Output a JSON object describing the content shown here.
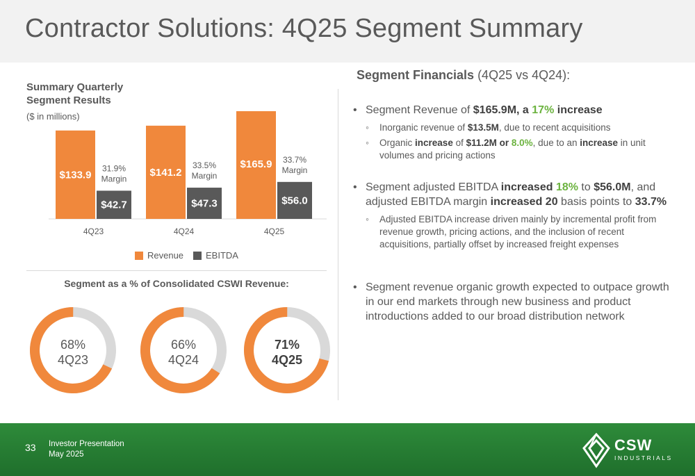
{
  "page": {
    "title": "Contractor Solutions: 4Q25 Segment Summary"
  },
  "chart_data": [
    {
      "type": "bar",
      "title": "Summary Quarterly Segment Results",
      "title_lines": [
        "Summary Quarterly",
        "Segment Results"
      ],
      "subtitle": "($ in millions)",
      "categories": [
        "4Q23",
        "4Q24",
        "4Q25"
      ],
      "series": [
        {
          "name": "Revenue",
          "values": [
            133.9,
            141.2,
            165.9
          ],
          "labels": [
            "$133.9",
            "$141.2",
            "$165.9"
          ],
          "color": "#f0883c"
        },
        {
          "name": "EBITDA",
          "values": [
            42.7,
            47.3,
            56.0
          ],
          "labels": [
            "$42.7",
            "$47.3",
            "$56.0"
          ],
          "color": "#595959"
        }
      ],
      "annotations": [
        {
          "lines": [
            "31.9%",
            "Margin"
          ]
        },
        {
          "lines": [
            "33.5%",
            "Margin"
          ]
        },
        {
          "lines": [
            "33.7%",
            "Margin"
          ]
        }
      ],
      "legend_position": "bottom",
      "grid": false
    },
    {
      "type": "pie",
      "title": "Segment as a % of Consolidated CSWI Revenue:",
      "items": [
        {
          "value": 68,
          "label": "68%",
          "period": "4Q23",
          "bold": false
        },
        {
          "value": 66,
          "label": "66%",
          "period": "4Q24",
          "bold": false
        },
        {
          "value": 71,
          "label": "71%",
          "period": "4Q25",
          "bold": true
        }
      ],
      "fill_color": "#f0883c",
      "remainder_color": "#d9d9d9"
    }
  ],
  "financials": {
    "heading_bold": "Segment Financials",
    "heading_rest": " (4Q25 vs 4Q24):",
    "b1": {
      "t1": "Segment Revenue of ",
      "t2": "$165.9M, a ",
      "t3": "17%",
      "t4": " increase"
    },
    "b1a": {
      "t1": "Inorganic revenue of ",
      "t2": "$13.5M",
      "t3": ", due to recent acquisitions"
    },
    "b1b": {
      "t1": "Organic ",
      "t2": "increase",
      "t3": " of ",
      "t4": "$11.2M or ",
      "t5": "8.0%",
      "t6": ", due to an ",
      "t7": "increase",
      "t8": " in unit volumes and pricing actions"
    },
    "b2": {
      "t1": "Segment adjusted EBITDA  ",
      "t2": "increased ",
      "t3": "18%",
      "t4": " to ",
      "t5": "$56.0M",
      "t6": ", and adjusted EBITDA margin ",
      "t7": "increased 20",
      "t8": " basis points to ",
      "t9": "33.7%"
    },
    "b2a": "Adjusted EBITDA increase driven mainly by incremental profit from revenue growth, pricing actions, and the inclusion of recent acquisitions, partially offset by increased freight expenses",
    "b3": "Segment revenue organic growth expected to outpace growth in our end markets through new business and product introductions added to our broad distribution network"
  },
  "footer": {
    "page_number": "33",
    "line1": "Investor Presentation",
    "line2": "May 2025",
    "logo_main": "CSW",
    "logo_sub": "INDUSTRIALS"
  },
  "colors": {
    "accent_orange": "#f0883c",
    "accent_green": "#6cb33f",
    "footer_green": "#2e8b3a",
    "dark_gray": "#595959"
  }
}
